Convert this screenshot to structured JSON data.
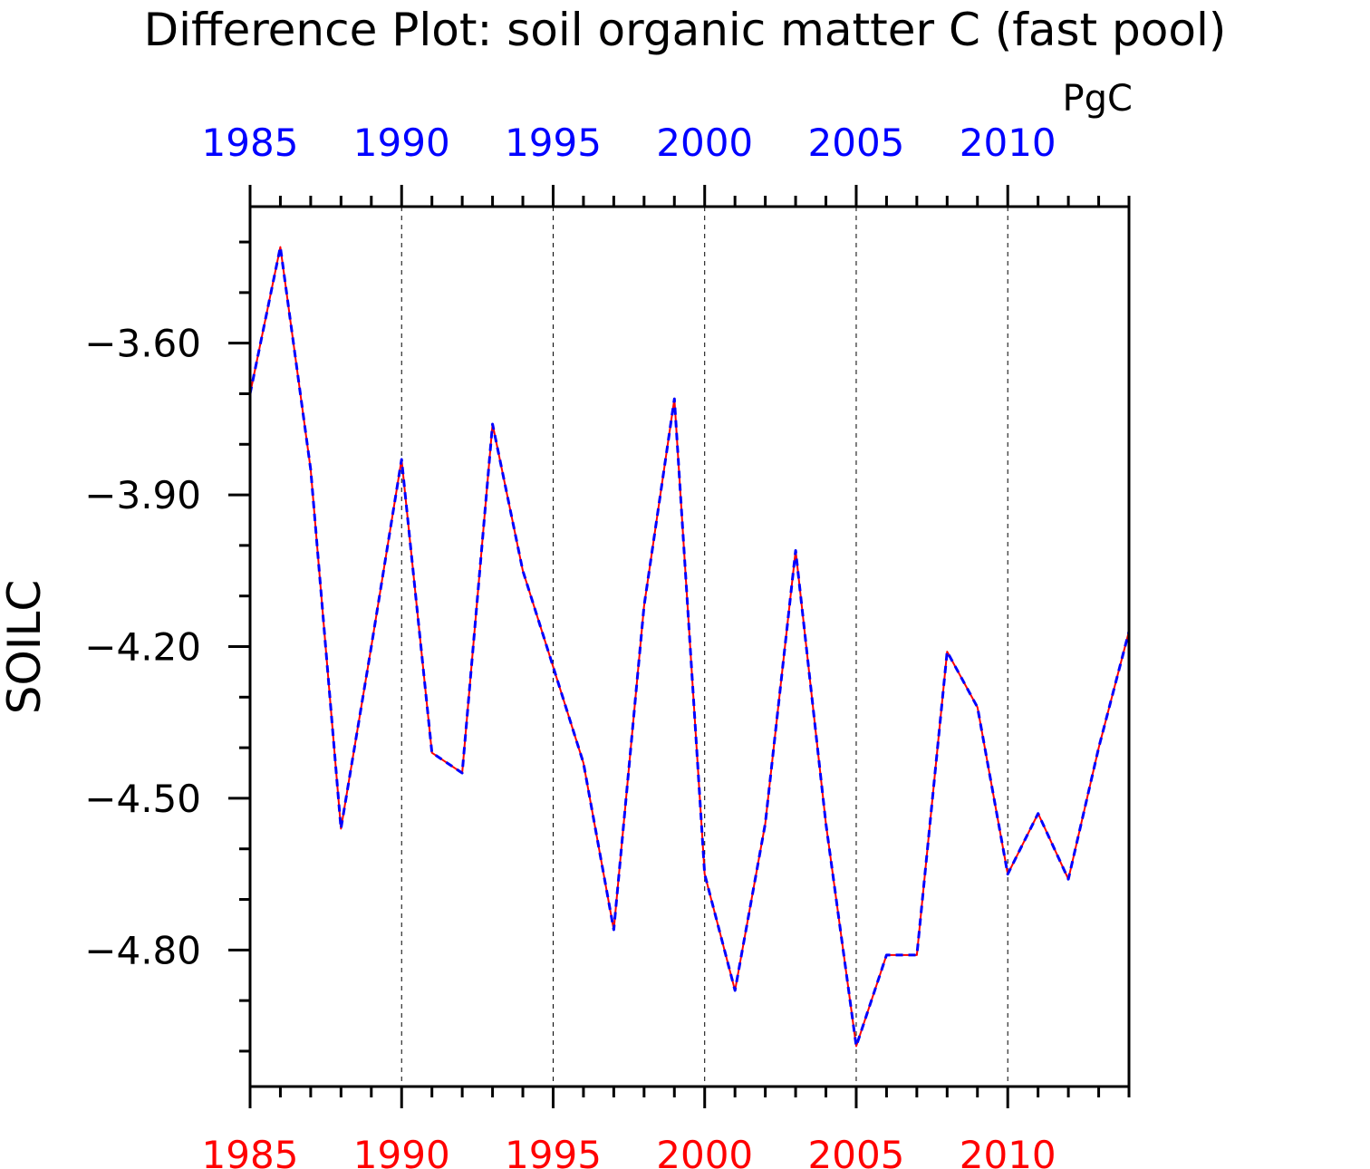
{
  "chart_data": {
    "type": "line",
    "title": "Difference Plot: soil organic matter C (fast pool)",
    "units": "PgC",
    "ylabel": "SOILC",
    "xlabel": "",
    "xlim": [
      1985,
      2014
    ],
    "ylim": [
      -5.07,
      -3.33
    ],
    "x_ticks": [
      1985,
      1990,
      1995,
      2000,
      2005,
      2010
    ],
    "y_ticks": [
      -3.6,
      -3.9,
      -4.2,
      -4.5,
      -4.8
    ],
    "y_tick_labels": [
      "−3.60",
      "−3.90",
      "−4.20",
      "−4.50",
      "−4.80"
    ],
    "top_axis_color": "#0000ff",
    "bottom_axis_color": "#ff0000",
    "grid": "vertical dashed at major x ticks",
    "x": [
      1985,
      1986,
      1987,
      1988,
      1989,
      1990,
      1991,
      1992,
      1993,
      1994,
      1995,
      1996,
      1997,
      1998,
      1999,
      2000,
      2001,
      2002,
      2003,
      2004,
      2005,
      2006,
      2007,
      2008,
      2009,
      2010,
      2011,
      2012,
      2013,
      2014
    ],
    "series": [
      {
        "color": "#ff0000",
        "style": "solid",
        "values": [
          -3.7,
          -3.41,
          -3.85,
          -4.56,
          -4.2,
          -3.83,
          -4.41,
          -4.45,
          -3.76,
          -4.05,
          -4.24,
          -4.43,
          -4.76,
          -4.12,
          -3.71,
          -4.65,
          -4.88,
          -4.55,
          -4.01,
          -4.55,
          -4.99,
          -4.81,
          -4.81,
          -4.21,
          -4.32,
          -4.65,
          -4.53,
          -4.66,
          -4.4,
          -4.17
        ]
      },
      {
        "color": "#0000ff",
        "style": "dashed",
        "values": [
          -3.7,
          -3.41,
          -3.85,
          -4.56,
          -4.2,
          -3.83,
          -4.41,
          -4.45,
          -3.76,
          -4.05,
          -4.24,
          -4.43,
          -4.76,
          -4.12,
          -3.71,
          -4.65,
          -4.88,
          -4.55,
          -4.01,
          -4.55,
          -4.99,
          -4.81,
          -4.81,
          -4.21,
          -4.32,
          -4.65,
          -4.53,
          -4.66,
          -4.4,
          -4.17
        ]
      }
    ]
  }
}
